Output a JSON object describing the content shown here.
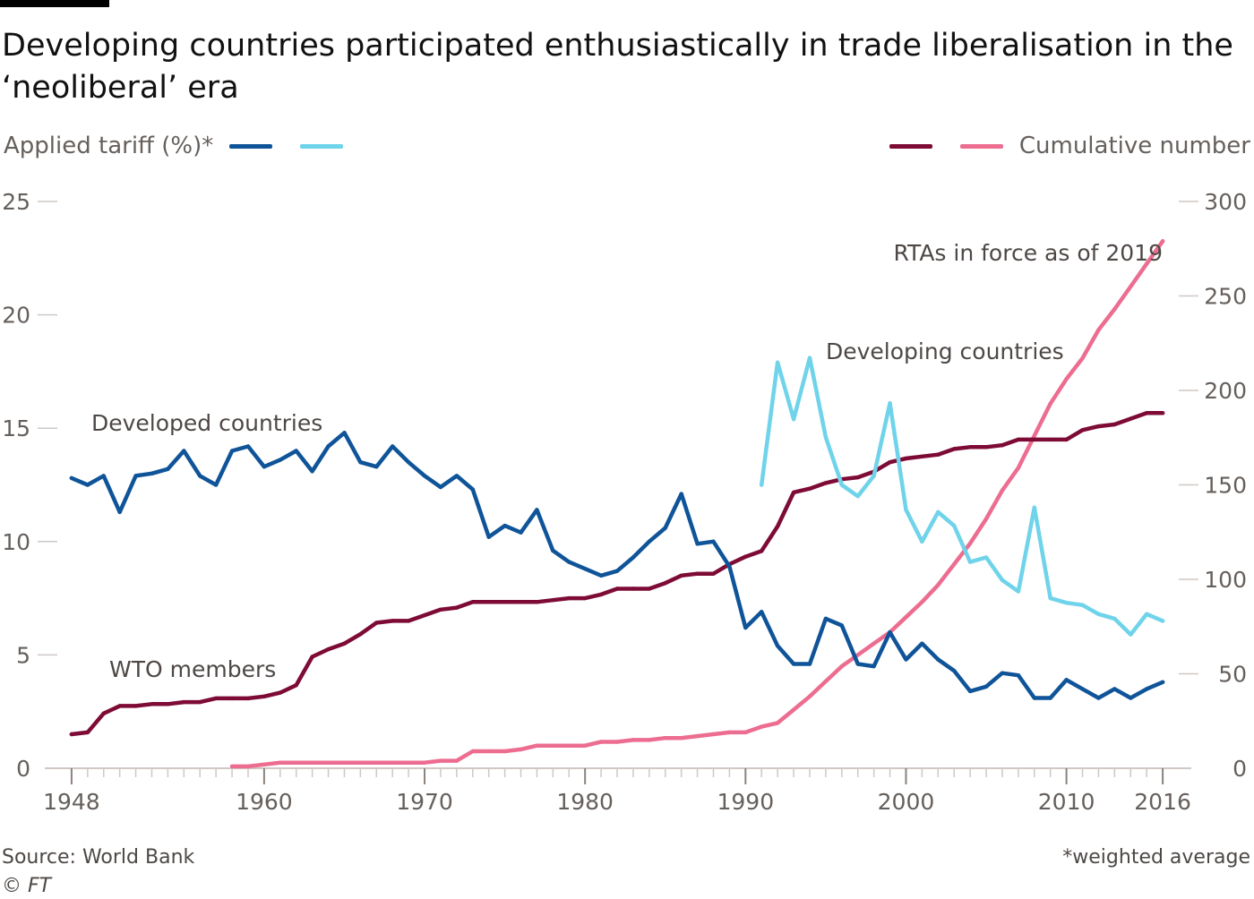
{
  "title": "Developing countries participated enthusiastically in trade liberalisation in the ‘neoliberal’ era",
  "legend": {
    "left_label": "Applied tariff (%)*",
    "right_label": "Cumulative number"
  },
  "colors": {
    "developed": "#0f5499",
    "developing": "#6fd3ea",
    "wto": "#7d0b35",
    "rta": "#ec6d90",
    "axis": "#cfc8c4",
    "tick_text": "#66605c",
    "annotation": "#4d4845"
  },
  "footer": {
    "source": "Source: World Bank",
    "note": "*weighted average",
    "copyright": "© FT"
  },
  "chart_data": {
    "type": "line",
    "x_ticks": [
      1948,
      1960,
      1970,
      1980,
      1990,
      2000,
      2010,
      2016
    ],
    "x_range": [
      1947,
      2017
    ],
    "y_left": {
      "label": "Applied tariff (%)*",
      "range": [
        0,
        25
      ],
      "ticks": [
        0,
        5,
        10,
        15,
        20,
        25
      ]
    },
    "y_right": {
      "label": "Cumulative number",
      "range": [
        0,
        300
      ],
      "ticks": [
        0,
        50,
        100,
        150,
        200,
        250,
        300
      ]
    },
    "annotations": {
      "developed": "Developed countries",
      "developing": "Developing countries",
      "wto": "WTO members",
      "rta": "RTAs in force as of 2019"
    },
    "series": [
      {
        "key": "developed",
        "name": "Developed countries",
        "axis": "left",
        "x": [
          1948,
          1949,
          1950,
          1951,
          1952,
          1953,
          1954,
          1955,
          1956,
          1957,
          1958,
          1959,
          1960,
          1961,
          1962,
          1963,
          1964,
          1965,
          1966,
          1967,
          1968,
          1969,
          1970,
          1971,
          1972,
          1973,
          1974,
          1975,
          1976,
          1977,
          1978,
          1979,
          1980,
          1981,
          1982,
          1983,
          1984,
          1985,
          1986,
          1987,
          1988,
          1989,
          1990,
          1991,
          1992,
          1993,
          1994,
          1995,
          1996,
          1997,
          1998,
          1999,
          2000,
          2001,
          2002,
          2003,
          2004,
          2005,
          2006,
          2007,
          2008,
          2009,
          2010,
          2011,
          2012,
          2013,
          2014,
          2015,
          2016
        ],
        "values": [
          12.8,
          12.5,
          12.9,
          11.3,
          12.9,
          13.0,
          13.2,
          14.0,
          12.9,
          12.5,
          14.0,
          14.2,
          13.3,
          13.6,
          14.0,
          13.1,
          14.2,
          14.8,
          13.5,
          13.3,
          14.2,
          13.5,
          12.9,
          12.4,
          12.9,
          12.3,
          10.2,
          10.7,
          10.4,
          11.4,
          9.6,
          9.1,
          8.8,
          8.5,
          8.7,
          9.3,
          10.0,
          10.6,
          12.1,
          9.9,
          10.0,
          8.9,
          6.2,
          6.9,
          5.4,
          4.6,
          4.6,
          6.6,
          6.3,
          4.6,
          4.5,
          6.0,
          4.8,
          5.5,
          4.8,
          4.3,
          3.4,
          3.6,
          4.2,
          4.1,
          3.1,
          3.1,
          3.9,
          3.5,
          3.1,
          3.5,
          3.1,
          3.5,
          3.8
        ]
      },
      {
        "key": "developing",
        "name": "Developing countries",
        "axis": "left",
        "x": [
          1991,
          1992,
          1993,
          1994,
          1995,
          1996,
          1997,
          1998,
          1999,
          2000,
          2001,
          2002,
          2003,
          2004,
          2005,
          2006,
          2007,
          2008,
          2009,
          2010,
          2011,
          2012,
          2013,
          2014,
          2015,
          2016
        ],
        "values": [
          12.5,
          17.9,
          15.4,
          18.1,
          14.6,
          12.5,
          12.0,
          12.9,
          16.1,
          11.4,
          10.0,
          11.3,
          10.7,
          9.1,
          9.3,
          8.3,
          7.8,
          11.5,
          7.5,
          7.3,
          7.2,
          6.8,
          6.6,
          5.9,
          6.8,
          6.5
        ]
      },
      {
        "key": "wto",
        "name": "WTO members",
        "axis": "right",
        "x": [
          1948,
          1949,
          1950,
          1951,
          1952,
          1953,
          1954,
          1955,
          1956,
          1957,
          1958,
          1959,
          1960,
          1961,
          1962,
          1963,
          1964,
          1965,
          1966,
          1967,
          1968,
          1969,
          1970,
          1971,
          1972,
          1973,
          1974,
          1975,
          1976,
          1977,
          1978,
          1979,
          1980,
          1981,
          1982,
          1983,
          1984,
          1985,
          1986,
          1987,
          1988,
          1989,
          1990,
          1991,
          1992,
          1993,
          1994,
          1995,
          1996,
          1997,
          1998,
          1999,
          2000,
          2001,
          2002,
          2003,
          2004,
          2005,
          2006,
          2007,
          2008,
          2009,
          2010,
          2011,
          2012,
          2013,
          2014,
          2015,
          2016
        ],
        "values": [
          18,
          19,
          29,
          33,
          33,
          34,
          34,
          35,
          35,
          37,
          37,
          37,
          38,
          40,
          44,
          59,
          63,
          66,
          71,
          77,
          78,
          78,
          81,
          84,
          85,
          88,
          88,
          88,
          88,
          88,
          89,
          90,
          90,
          92,
          95,
          95,
          95,
          98,
          102,
          103,
          103,
          108,
          112,
          115,
          128,
          146,
          148,
          151,
          153,
          154,
          157,
          162,
          164,
          165,
          166,
          169,
          170,
          170,
          171,
          174,
          174,
          174,
          174,
          179,
          181,
          182,
          185,
          188,
          188
        ]
      },
      {
        "key": "rta",
        "name": "RTAs in force as of 2019",
        "axis": "right",
        "x": [
          1958,
          1959,
          1960,
          1961,
          1962,
          1963,
          1964,
          1965,
          1966,
          1967,
          1968,
          1969,
          1970,
          1971,
          1972,
          1973,
          1974,
          1975,
          1976,
          1977,
          1978,
          1979,
          1980,
          1981,
          1982,
          1983,
          1984,
          1985,
          1986,
          1987,
          1988,
          1989,
          1990,
          1991,
          1992,
          1993,
          1994,
          1995,
          1996,
          1997,
          1998,
          1999,
          2000,
          2001,
          2002,
          2003,
          2004,
          2005,
          2006,
          2007,
          2008,
          2009,
          2010,
          2011,
          2012,
          2013,
          2014,
          2015,
          2016
        ],
        "values": [
          1,
          1,
          2,
          3,
          3,
          3,
          3,
          3,
          3,
          3,
          3,
          3,
          3,
          4,
          4,
          9,
          9,
          9,
          10,
          12,
          12,
          12,
          12,
          14,
          14,
          15,
          15,
          16,
          16,
          17,
          18,
          19,
          19,
          22,
          24,
          31,
          38,
          46,
          54,
          60,
          66,
          72,
          80,
          88,
          97,
          108,
          119,
          132,
          147,
          159,
          176,
          193,
          206,
          217,
          232,
          243,
          255,
          267,
          279
        ]
      }
    ]
  }
}
